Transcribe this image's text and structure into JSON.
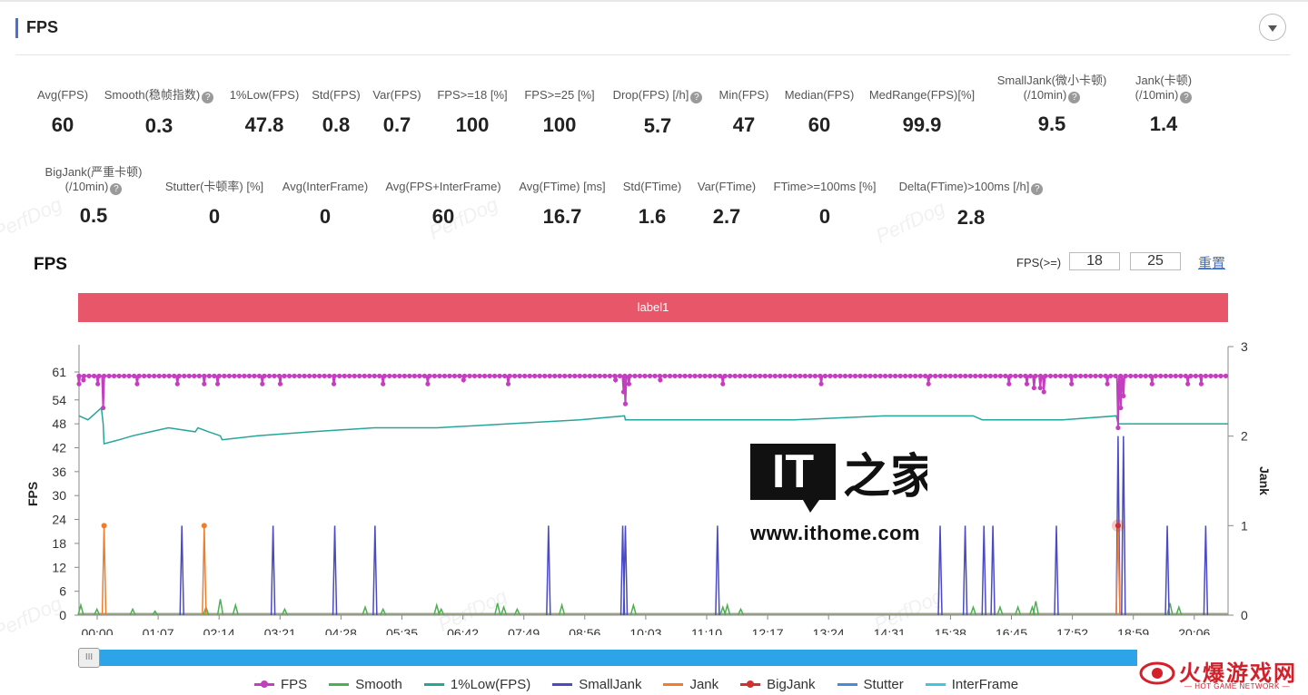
{
  "header": {
    "title": "FPS"
  },
  "metrics_row1": [
    {
      "label": "Avg(FPS)",
      "value": "60",
      "help": false
    },
    {
      "label": "Smooth(稳帧指数)",
      "value": "0.3",
      "help": true
    },
    {
      "label": "1%Low(FPS)",
      "value": "47.8",
      "help": false
    },
    {
      "label": "Std(FPS)",
      "value": "0.8",
      "help": false
    },
    {
      "label": "Var(FPS)",
      "value": "0.7",
      "help": false
    },
    {
      "label": "FPS>=18 [%]",
      "value": "100",
      "help": false
    },
    {
      "label": "FPS>=25 [%]",
      "value": "100",
      "help": false
    },
    {
      "label": "Drop(FPS) [/h]",
      "value": "5.7",
      "help": true
    },
    {
      "label": "Min(FPS)",
      "value": "47",
      "help": false
    },
    {
      "label": "Median(FPS)",
      "value": "60",
      "help": false
    },
    {
      "label": "MedRange(FPS)[%]",
      "value": "99.9",
      "help": false
    },
    {
      "label": "SmallJank(微小卡顿)",
      "label2": "(/10min)",
      "value": "9.5",
      "help": true
    },
    {
      "label": "Jank(卡顿)",
      "label2": "(/10min)",
      "value": "1.4",
      "help": true
    }
  ],
  "metrics_row2": [
    {
      "label": "BigJank(严重卡顿)",
      "label2": "(/10min)",
      "value": "0.5",
      "help": true
    },
    {
      "label": "Stutter(卡顿率) [%]",
      "value": "0",
      "help": false
    },
    {
      "label": "Avg(InterFrame)",
      "value": "0",
      "help": false
    },
    {
      "label": "Avg(FPS+InterFrame)",
      "value": "60",
      "help": false
    },
    {
      "label": "Avg(FTime) [ms]",
      "value": "16.7",
      "help": false
    },
    {
      "label": "Std(FTime)",
      "value": "1.6",
      "help": false
    },
    {
      "label": "Var(FTime)",
      "value": "2.7",
      "help": false
    },
    {
      "label": "FTime>=100ms [%]",
      "value": "0",
      "help": false
    },
    {
      "label": "Delta(FTime)>100ms [/h]",
      "value": "2.8",
      "help": true
    }
  ],
  "chart_section": {
    "title": "FPS",
    "threshold_label": "FPS(>=)",
    "threshold1": "18",
    "threshold2": "25",
    "reset_label": "重置",
    "band_label": "label1",
    "scroll_handle": "III"
  },
  "watermark": "PerfDog",
  "logos": {
    "it_text": "IT",
    "it_cn": "之家",
    "url": "www.ithome.com",
    "hotgame_cn": "火爆游戏网",
    "hotgame_en": "— HOT GAME NETWORK —"
  },
  "chart_data": {
    "type": "line",
    "x_ticks": [
      "00:00",
      "01:07",
      "02:14",
      "03:21",
      "04:28",
      "05:35",
      "06:42",
      "07:49",
      "08:56",
      "10:03",
      "11:10",
      "12:17",
      "13:24",
      "14:31",
      "15:38",
      "16:45",
      "17:52",
      "18:59",
      "20:06"
    ],
    "x_range_seconds": [
      0,
      1285
    ],
    "y_left": {
      "label": "FPS",
      "ticks": [
        0,
        6,
        12,
        18,
        24,
        30,
        36,
        42,
        48,
        54,
        61
      ],
      "range": [
        0,
        61
      ]
    },
    "y_right": {
      "label": "Jank",
      "ticks": [
        0,
        1,
        2,
        3
      ],
      "range": [
        0,
        3
      ]
    },
    "colors": {
      "FPS": "#c43fbf",
      "Smooth": "#4caf50",
      "1%Low(FPS)": "#26a69a",
      "SmallJank": "#4a4ac6",
      "Jank": "#ef7d2c",
      "BigJank": "#d32f2f",
      "Stutter": "#4a88d8",
      "InterFrame": "#3fc6e0"
    },
    "series": [
      {
        "name": "FPS",
        "baseline": 60,
        "dips": [
          [
            0,
            58
          ],
          [
            5,
            59
          ],
          [
            21,
            58
          ],
          [
            27,
            52
          ],
          [
            65,
            58
          ],
          [
            110,
            58
          ],
          [
            140,
            58
          ],
          [
            155,
            58
          ],
          [
            205,
            58
          ],
          [
            225,
            58
          ],
          [
            285,
            58
          ],
          [
            340,
            58
          ],
          [
            390,
            58
          ],
          [
            430,
            59
          ],
          [
            480,
            58
          ],
          [
            600,
            59
          ],
          [
            609,
            56
          ],
          [
            611,
            53
          ],
          [
            615,
            58
          ],
          [
            650,
            59
          ],
          [
            720,
            58
          ],
          [
            830,
            58
          ],
          [
            950,
            58
          ],
          [
            1040,
            58
          ],
          [
            1060,
            58
          ],
          [
            1068,
            57
          ],
          [
            1075,
            57
          ],
          [
            1079,
            56
          ],
          [
            1110,
            58
          ],
          [
            1150,
            58
          ],
          [
            1162,
            47
          ],
          [
            1165,
            52
          ],
          [
            1168,
            55
          ],
          [
            1200,
            58
          ],
          [
            1240,
            58
          ],
          [
            1255,
            58
          ]
        ]
      },
      {
        "name": "1%Low(FPS)",
        "values": [
          [
            0,
            50
          ],
          [
            10,
            49
          ],
          [
            20,
            51
          ],
          [
            25,
            52
          ],
          [
            27,
            48
          ],
          [
            28,
            43
          ],
          [
            45,
            44
          ],
          [
            60,
            45
          ],
          [
            80,
            46
          ],
          [
            100,
            47
          ],
          [
            130,
            46
          ],
          [
            133,
            47
          ],
          [
            145,
            46
          ],
          [
            158,
            45
          ],
          [
            160,
            44
          ],
          [
            200,
            45
          ],
          [
            260,
            46
          ],
          [
            330,
            47
          ],
          [
            400,
            47
          ],
          [
            480,
            48
          ],
          [
            560,
            49
          ],
          [
            610,
            50
          ],
          [
            611,
            49
          ],
          [
            700,
            49
          ],
          [
            800,
            49
          ],
          [
            900,
            50
          ],
          [
            1000,
            50
          ],
          [
            1010,
            49
          ],
          [
            1100,
            49
          ],
          [
            1160,
            50
          ],
          [
            1162,
            48
          ],
          [
            1200,
            48
          ],
          [
            1285,
            48
          ]
        ]
      },
      {
        "name": "SmallJank",
        "spikes": [
          [
            115,
            1
          ],
          [
            217,
            1
          ],
          [
            286,
            1
          ],
          [
            331,
            1
          ],
          [
            525,
            1
          ],
          [
            608,
            1
          ],
          [
            611,
            1
          ],
          [
            714,
            1
          ],
          [
            963,
            1
          ],
          [
            991,
            1
          ],
          [
            1012,
            1
          ],
          [
            1022,
            1
          ],
          [
            1093,
            1
          ],
          [
            1162,
            2
          ],
          [
            1168,
            2
          ],
          [
            1217,
            1
          ],
          [
            1260,
            1
          ]
        ]
      },
      {
        "name": "Jank",
        "spikes": [
          [
            28,
            1
          ],
          [
            140,
            1
          ],
          [
            1162,
            1
          ]
        ]
      },
      {
        "name": "BigJank",
        "spikes": [
          [
            1162,
            1
          ]
        ]
      },
      {
        "name": "Smooth",
        "spikes": [
          [
            2,
            2.5
          ],
          [
            20,
            1.5
          ],
          [
            60,
            1.5
          ],
          [
            85,
            1
          ],
          [
            142,
            2
          ],
          [
            158,
            4
          ],
          [
            175,
            2.5
          ],
          [
            230,
            1.5
          ],
          [
            320,
            2
          ],
          [
            340,
            1.5
          ],
          [
            400,
            2.5
          ],
          [
            405,
            1.5
          ],
          [
            468,
            3
          ],
          [
            475,
            2
          ],
          [
            490,
            1.5
          ],
          [
            540,
            2.5
          ],
          [
            620,
            2.5
          ],
          [
            720,
            2
          ],
          [
            725,
            2.5
          ],
          [
            740,
            1.5
          ],
          [
            1000,
            2
          ],
          [
            1030,
            2
          ],
          [
            1050,
            2
          ],
          [
            1066,
            2
          ],
          [
            1070,
            3.5
          ],
          [
            1220,
            3
          ],
          [
            1230,
            2
          ]
        ]
      },
      {
        "name": "Stutter",
        "values": [
          [
            0,
            0
          ],
          [
            1285,
            0
          ]
        ]
      },
      {
        "name": "InterFrame",
        "values": [
          [
            0,
            0
          ],
          [
            1285,
            0
          ]
        ]
      }
    ]
  }
}
